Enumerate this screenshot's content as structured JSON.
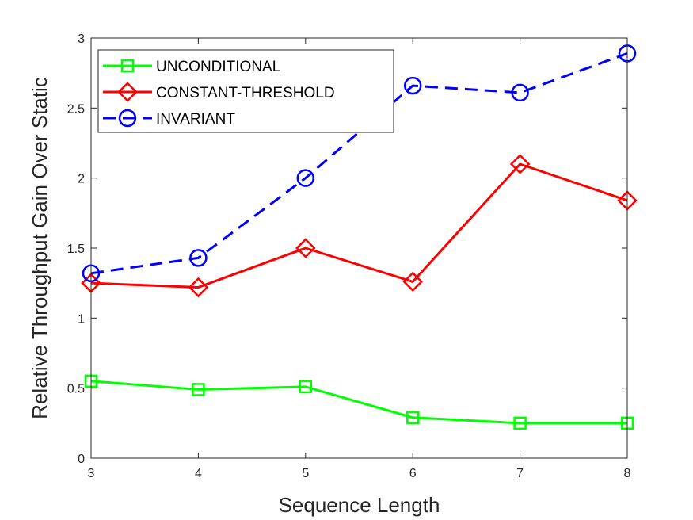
{
  "chart_data": {
    "type": "line",
    "title": "",
    "xlabel": "Sequence Length",
    "ylabel": "Relative Throughput Gain Over Static",
    "x": [
      3,
      4,
      5,
      6,
      7,
      8
    ],
    "xlim": [
      3,
      8
    ],
    "ylim": [
      0,
      3
    ],
    "xticks": [
      "3",
      "4",
      "5",
      "6",
      "7",
      "8"
    ],
    "yticks": [
      "0",
      "0.5",
      "1",
      "1.5",
      "2",
      "2.5",
      "3"
    ],
    "grid": false,
    "legend_position": "top-left",
    "series": [
      {
        "name": "UNCONDITIONAL",
        "values": [
          0.55,
          0.49,
          0.51,
          0.29,
          0.25,
          0.25
        ],
        "color": "#00ff00",
        "line_style": "solid",
        "marker": "square"
      },
      {
        "name": "CONSTANT-THRESHOLD",
        "values": [
          1.25,
          1.22,
          1.5,
          1.26,
          2.1,
          1.84
        ],
        "color": "#ff0000",
        "line_style": "solid",
        "marker": "diamond"
      },
      {
        "name": "INVARIANT",
        "values": [
          1.32,
          1.43,
          2.0,
          2.66,
          2.61,
          2.89
        ],
        "color": "#0000ff",
        "line_style": "dashed",
        "marker": "circle"
      }
    ]
  }
}
